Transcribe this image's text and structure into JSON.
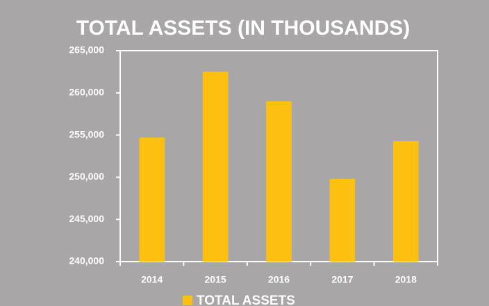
{
  "chart_data": {
    "type": "bar",
    "title": "TOTAL ASSETS (IN THOUSANDS)",
    "categories": [
      "2014",
      "2015",
      "2016",
      "2017",
      "2018"
    ],
    "series": [
      {
        "name": "TOTAL ASSETS",
        "color": "#fdc010",
        "values": [
          254700,
          262500,
          259000,
          249800,
          254300
        ]
      }
    ],
    "ylim": [
      240000,
      265000
    ],
    "yticks": [
      {
        "value": 240000,
        "label": "240,000"
      },
      {
        "value": 245000,
        "label": "245,000"
      },
      {
        "value": 250000,
        "label": "250,000"
      },
      {
        "value": 255000,
        "label": "255,000"
      },
      {
        "value": 260000,
        "label": "260,000"
      },
      {
        "value": 265000,
        "label": "265,000"
      }
    ],
    "grid": false,
    "legend": "bottom"
  }
}
